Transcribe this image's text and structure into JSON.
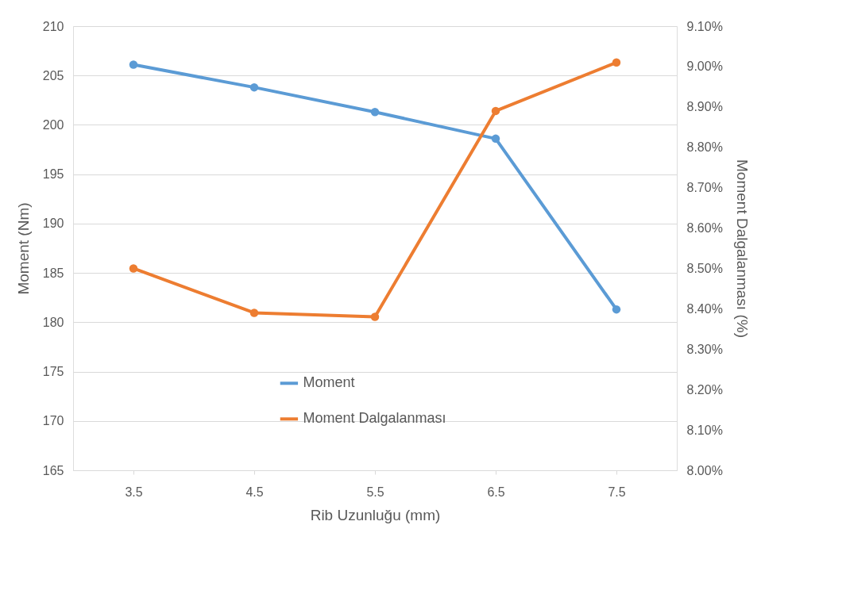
{
  "chart_data": {
    "type": "line",
    "xlabel": "Rib Uzunluğu (mm)",
    "ylabel": "Moment  (Nm)",
    "y2label": "Moment Dalgalanması (%)",
    "categories": [
      "3.5",
      "4.5",
      "5.5",
      "6.5",
      "7.5"
    ],
    "series": [
      {
        "name": "Moment",
        "color": "#5b9bd5",
        "values": [
          206.1,
          203.8,
          201.3,
          198.6,
          181.3
        ]
      },
      {
        "name": "Moment Dalgalanması",
        "color": "#ed7d31",
        "axis": "y2",
        "values": [
          8.5,
          8.39,
          8.38,
          8.89,
          9.01
        ]
      }
    ],
    "ylim": [
      165,
      210
    ],
    "yticks": [
      165,
      170,
      175,
      180,
      185,
      190,
      195,
      200,
      205,
      210
    ],
    "y2lim": [
      8.0,
      9.1
    ],
    "y2ticks": [
      {
        "value": 8.0,
        "label": "8.00%"
      },
      {
        "value": 8.1,
        "label": "8.10%"
      },
      {
        "value": 8.2,
        "label": "8.20%"
      },
      {
        "value": 8.3,
        "label": "8.30%"
      },
      {
        "value": 8.4,
        "label": "8.40%"
      },
      {
        "value": 8.5,
        "label": "8.50%"
      },
      {
        "value": 8.6,
        "label": "8.60%"
      },
      {
        "value": 8.7,
        "label": "8.70%"
      },
      {
        "value": 8.8,
        "label": "8.80%"
      },
      {
        "value": 8.9,
        "label": "8.90%"
      },
      {
        "value": 9.0,
        "label": "9.00%"
      },
      {
        "value": 9.1,
        "label": "9.10%"
      }
    ],
    "grid": "y",
    "legend": "bottom",
    "marker": "circle",
    "line_style": "solid"
  }
}
